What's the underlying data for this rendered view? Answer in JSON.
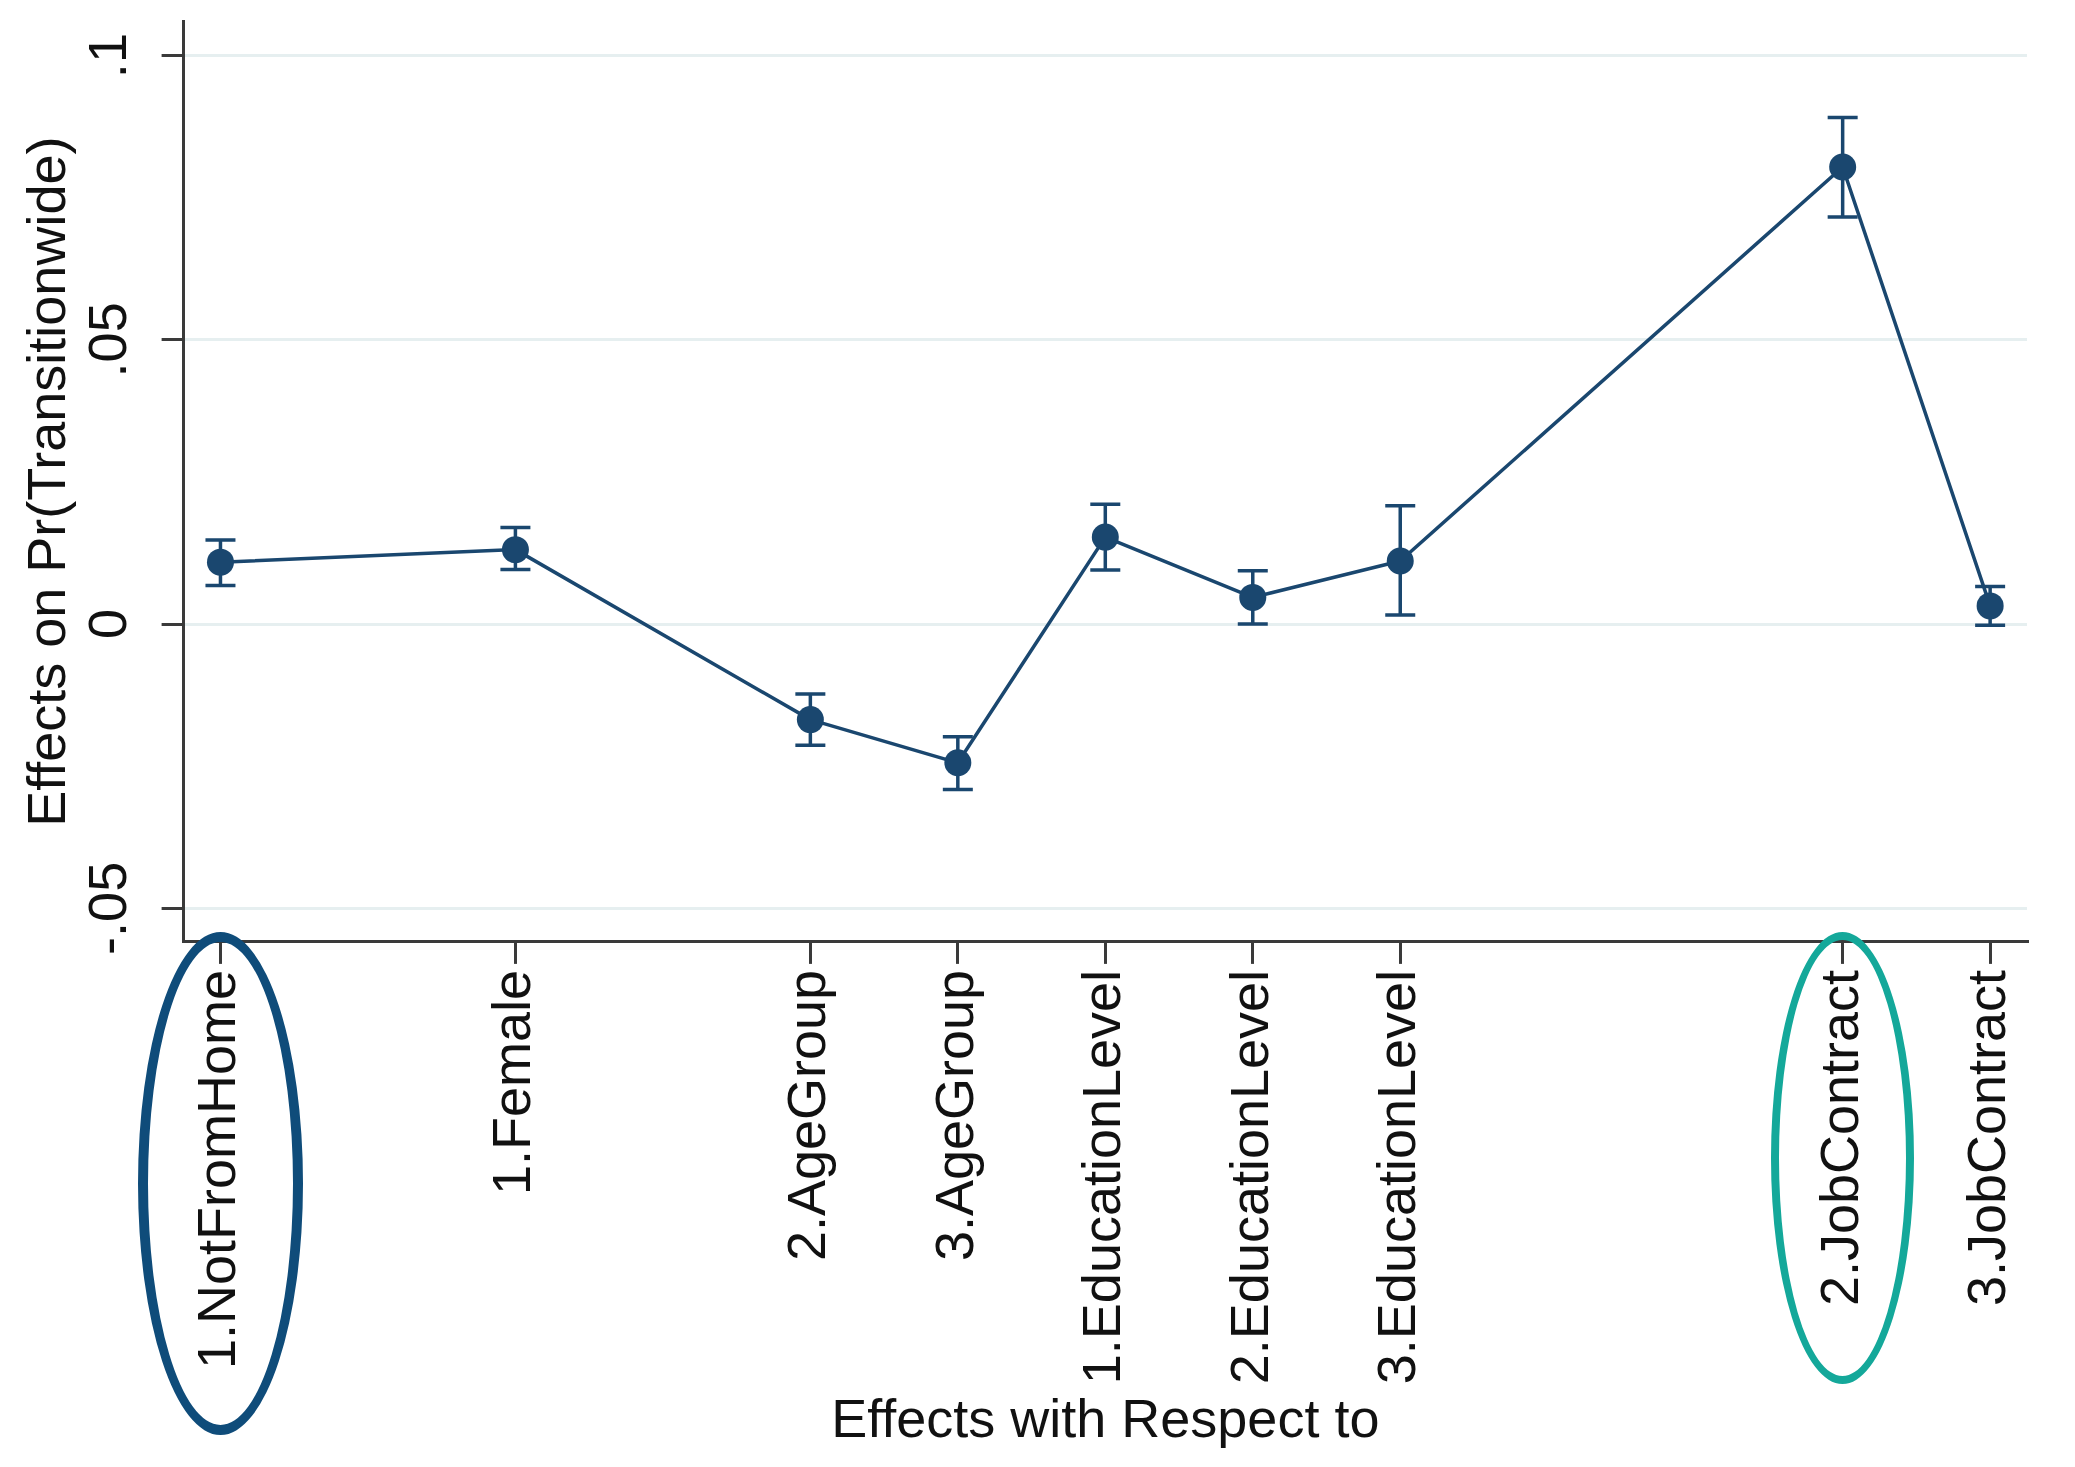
{
  "chart_data": {
    "type": "line",
    "xlabel": "Effects with Respect to",
    "ylabel": "Effects on Pr(Transitionwide)",
    "categories": [
      "1.NotFromHome",
      null,
      "1.Female",
      null,
      "2.AgeGroup",
      "3.AgeGroup",
      "1.EducationLevel",
      "2.EducationLevel",
      "3.EducationLevel",
      null,
      null,
      "2.JobContract",
      "3.JobContract"
    ],
    "ylim": [
      -0.0559,
      0.106
    ],
    "yticks": [
      {
        "value": -0.05,
        "label": "-.05"
      },
      0,
      {
        "value": 0.05,
        "label": ".05"
      },
      {
        "value": 0.1,
        "label": ".1"
      }
    ],
    "series": [
      {
        "color": "#1a476f",
        "values": [
          0.0109,
          null,
          0.0131,
          null,
          -0.0168,
          -0.0244,
          0.0153,
          0.0047,
          0.0111,
          null,
          null,
          0.0804,
          0.0032
        ],
        "errors": [
          [
            0.0068,
            0.0148
          ],
          null,
          [
            0.0096,
            0.017
          ],
          null,
          [
            -0.0213,
            -0.0123
          ],
          [
            -0.0291,
            -0.0198
          ],
          [
            0.0095,
            0.0211
          ],
          [
            0.0,
            0.0094
          ],
          [
            0.0016,
            0.0208
          ],
          null,
          null,
          [
            0.0716,
            0.0891
          ],
          [
            -0.0002,
            0.0066
          ]
        ]
      }
    ],
    "marker": "circle",
    "line_style": "solid",
    "grid": "y"
  }
}
